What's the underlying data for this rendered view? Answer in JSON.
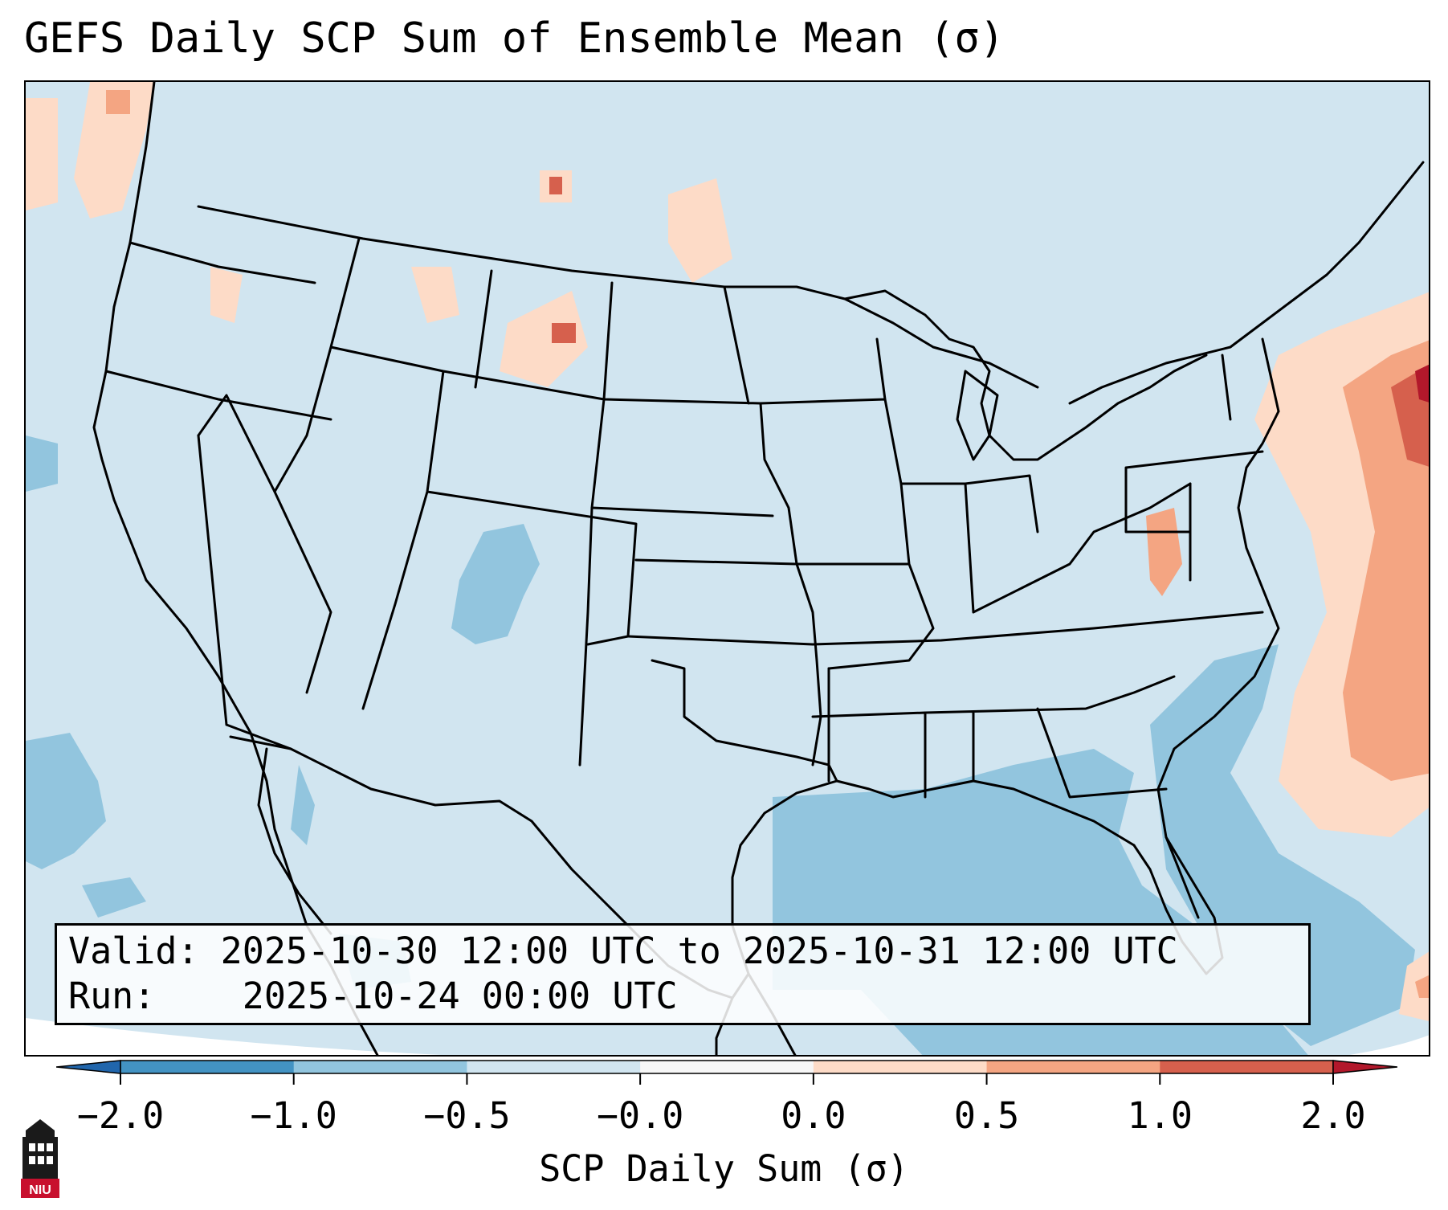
{
  "title": "GEFS Daily SCP Sum of Ensemble Mean (σ)",
  "info": {
    "valid_label": "Valid:",
    "valid_value": "2025-10-30 12:00 UTC to 2025-10-31 12:00 UTC",
    "run_label": "Run:",
    "run_value": "2025-10-24 00:00 UTC"
  },
  "colorbar": {
    "label": "SCP Daily Sum (σ)",
    "ticks": [
      "−2.0",
      "−1.0",
      "−0.5",
      "−0.0",
      "0.0",
      "0.5",
      "1.0",
      "2.0"
    ],
    "colors": [
      "#4393c3",
      "#92c5de",
      "#d1e5f0",
      "#f7f7f7",
      "#fddbc7",
      "#f4a582",
      "#d6604d"
    ],
    "under_color": "#2166ac",
    "over_color": "#b2182b"
  },
  "logo": {
    "text": "NIU",
    "icon": "university-building-icon"
  },
  "colors": {
    "background_field": "#d1e5f0",
    "negative_field": "#92c5de",
    "positive_light": "#fddbc7",
    "positive_mid": "#f4a582",
    "positive_high": "#d6604d",
    "positive_max": "#b2182b"
  }
}
